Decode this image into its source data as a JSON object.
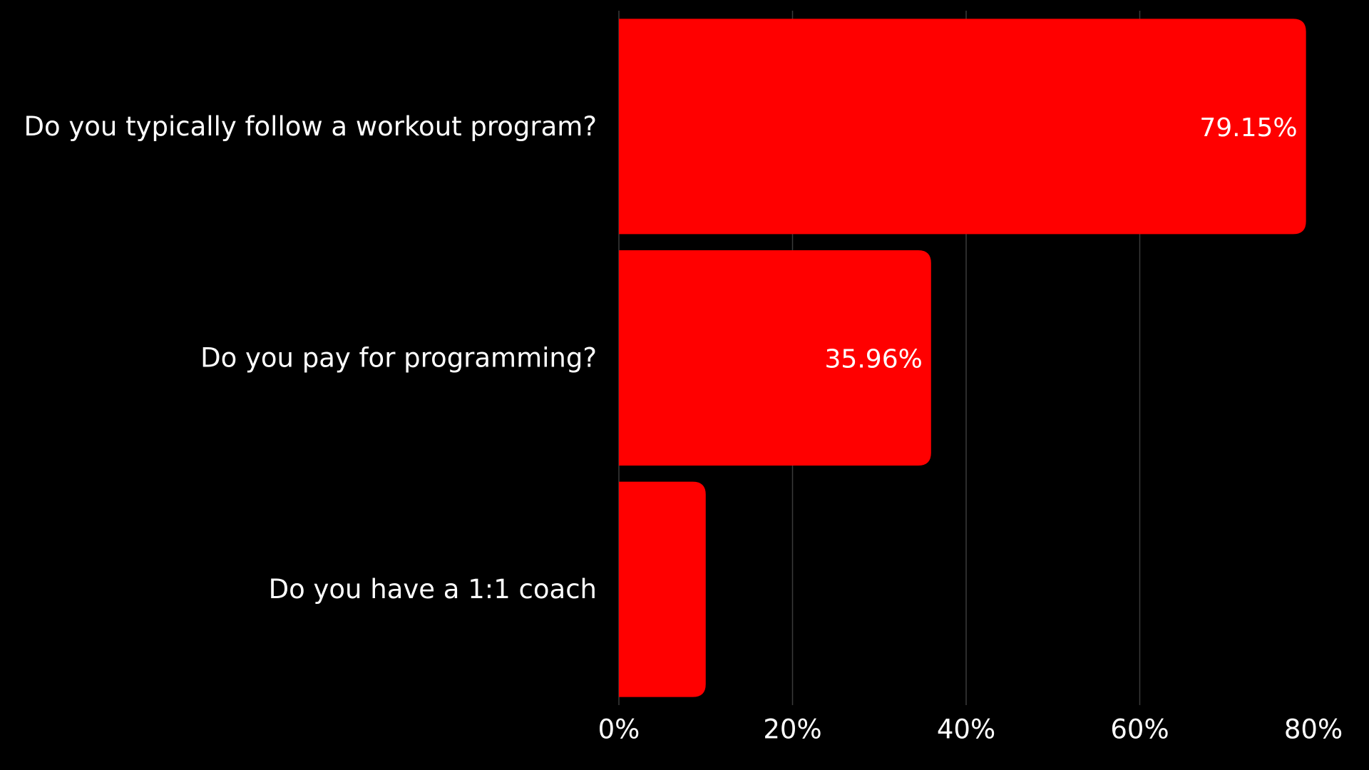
{
  "chart_data": {
    "type": "bar",
    "orientation": "horizontal",
    "categories": [
      "Do you typically follow a workout program?",
      "Do you pay for programming?",
      "Do you have a 1:1 coach"
    ],
    "values": [
      79.15,
      35.96,
      10
    ],
    "data_labels": [
      "79.15%",
      "35.96%",
      ""
    ],
    "xlim": [
      0,
      80
    ],
    "x_ticks": [
      0,
      20,
      40,
      60,
      80
    ],
    "x_tick_labels": [
      "0%",
      "20%",
      "40%",
      "60%",
      "80%"
    ],
    "grid": true,
    "legend": "none",
    "colors": {
      "bar": "#ff0000",
      "background": "#000000",
      "text": "#ffffff",
      "grid": "#3a3a3a"
    }
  }
}
